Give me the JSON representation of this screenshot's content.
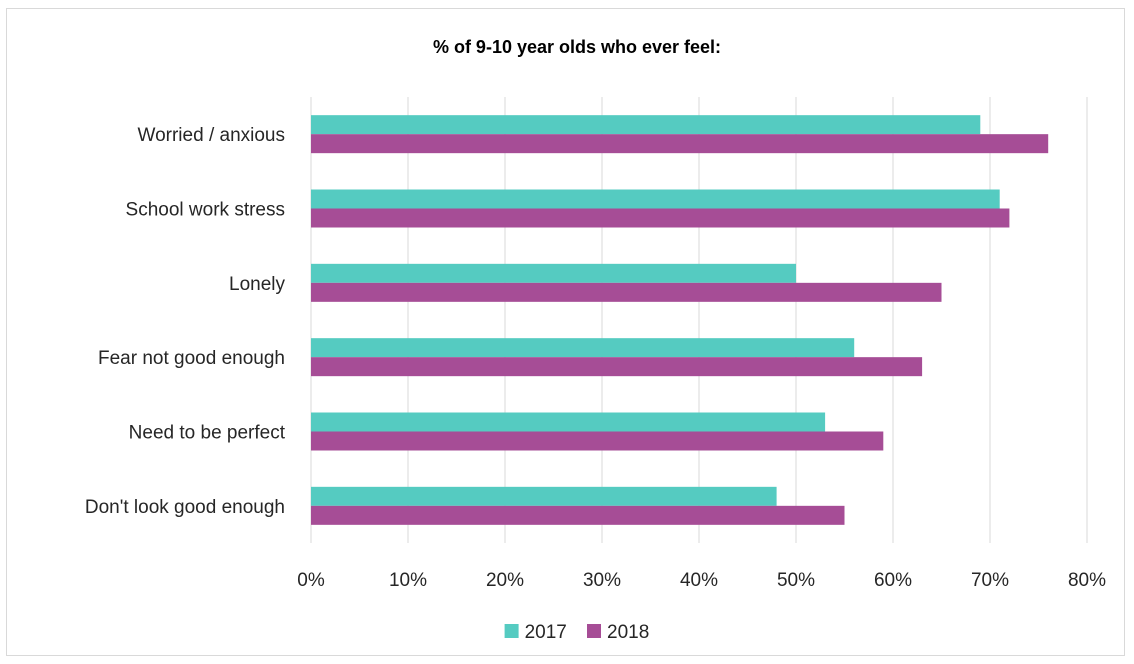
{
  "chart_data": {
    "type": "bar",
    "orientation": "horizontal",
    "title": "% of 9-10 year olds who ever feel:",
    "categories": [
      "Worried / anxious",
      "School work stress",
      "Lonely",
      "Fear not good enough",
      "Need to be perfect",
      "Don't look good enough"
    ],
    "series": [
      {
        "name": "2017",
        "color": "#55cbc1",
        "values": [
          69,
          71,
          50,
          56,
          53,
          48
        ]
      },
      {
        "name": "2018",
        "color": "#a64d96",
        "values": [
          76,
          72,
          65,
          63,
          59,
          55
        ]
      }
    ],
    "xlim": [
      0,
      80
    ],
    "xticks": [
      0,
      10,
      20,
      30,
      40,
      50,
      60,
      70,
      80
    ],
    "tick_suffix": "%",
    "grid": true,
    "legend": "bottom"
  }
}
